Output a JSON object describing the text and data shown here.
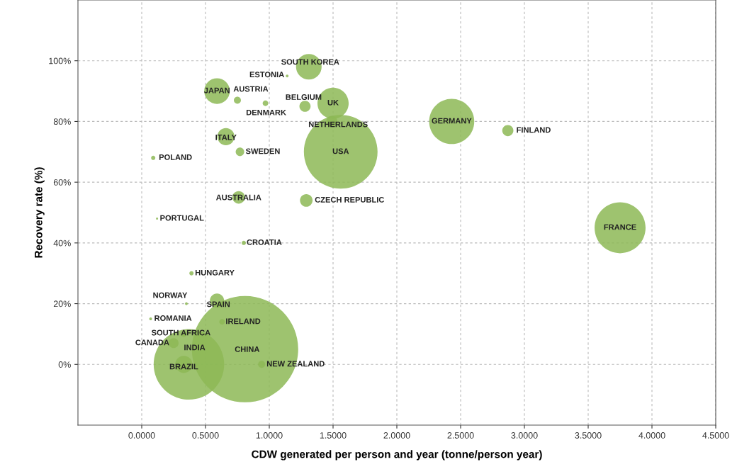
{
  "chart_data": {
    "type": "bubble",
    "xlabel": "CDW generated per person and year (tonne/person year)",
    "ylabel": "Recovery rate (%)",
    "xlim": [
      -0.5,
      4.5
    ],
    "ylim": [
      -20,
      120
    ],
    "xticks": [
      {
        "value": 0,
        "label": "0.0000"
      },
      {
        "value": 0.5,
        "label": "0.5000"
      },
      {
        "value": 1,
        "label": "1.0000"
      },
      {
        "value": 1.5,
        "label": "1.5000"
      },
      {
        "value": 2,
        "label": "2.0000"
      },
      {
        "value": 2.5,
        "label": "2.5000"
      },
      {
        "value": 3,
        "label": "3.0000"
      },
      {
        "value": 3.5,
        "label": "3.5000"
      },
      {
        "value": 4,
        "label": "4.0000"
      },
      {
        "value": 4.5,
        "label": "4.5000"
      }
    ],
    "yticks": [
      {
        "value": 0,
        "label": "0%"
      },
      {
        "value": 20,
        "label": "20%"
      },
      {
        "value": 40,
        "label": "40%"
      },
      {
        "value": 60,
        "label": "60%"
      },
      {
        "value": 80,
        "label": "80%"
      },
      {
        "value": 100,
        "label": "100%"
      }
    ],
    "grid": true,
    "marker": "circle",
    "series": [
      {
        "name": "SOUTH KOREA",
        "color": "#8db956",
        "x": [
          1.31
        ],
        "values": [
          98
        ],
        "sizes": [
          0.058
        ]
      },
      {
        "name": "ESTONIA",
        "color": "#8db956",
        "x": [
          1.14
        ],
        "values": [
          95
        ],
        "sizes": [
          0.0007
        ]
      },
      {
        "name": "JAPAN",
        "color": "#8db956",
        "x": [
          0.59
        ],
        "values": [
          90
        ],
        "sizes": [
          0.058
        ]
      },
      {
        "name": "AUSTRIA",
        "color": "#8db956",
        "x": [
          0.75
        ],
        "values": [
          87
        ],
        "sizes": [
          0.0044
        ]
      },
      {
        "name": "DENMARK",
        "color": "#8db956",
        "x": [
          0.97
        ],
        "values": [
          86
        ],
        "sizes": [
          0.0028
        ]
      },
      {
        "name": "BELGIUM",
        "color": "#8db956",
        "x": [
          1.28
        ],
        "values": [
          85
        ],
        "sizes": [
          0.011
        ]
      },
      {
        "name": "UK",
        "color": "#8db956",
        "x": [
          1.5
        ],
        "values": [
          86
        ],
        "sizes": [
          0.086
        ]
      },
      {
        "name": "NETHERLANDS",
        "color": "#8db956",
        "x": [
          1.49
        ],
        "values": [
          80
        ],
        "sizes": [
          0.011
        ]
      },
      {
        "name": "USA",
        "color": "#8db956",
        "x": [
          1.56
        ],
        "values": [
          70
        ],
        "sizes": [
          0.48
        ]
      },
      {
        "name": "ITALY",
        "color": "#8db956",
        "x": [
          0.66
        ],
        "values": [
          75
        ],
        "sizes": [
          0.026
        ]
      },
      {
        "name": "SWEDEN",
        "color": "#8db956",
        "x": [
          0.77
        ],
        "values": [
          70
        ],
        "sizes": [
          0.0064
        ]
      },
      {
        "name": "POLAND",
        "color": "#8db956",
        "x": [
          0.09
        ],
        "values": [
          68
        ],
        "sizes": [
          0.0016
        ]
      },
      {
        "name": "AUSTRALIA",
        "color": "#8db956",
        "x": [
          0.76
        ],
        "values": [
          55
        ],
        "sizes": [
          0.014
        ]
      },
      {
        "name": "CZECH REPUBLIC",
        "color": "#8db956",
        "x": [
          1.29
        ],
        "values": [
          54
        ],
        "sizes": [
          0.014
        ]
      },
      {
        "name": "PORTUGAL",
        "color": "#8db956",
        "x": [
          0.12
        ],
        "values": [
          48
        ],
        "sizes": [
          0.0004
        ]
      },
      {
        "name": "CROATIA",
        "color": "#8db956",
        "x": [
          0.8
        ],
        "values": [
          40
        ],
        "sizes": [
          0.0016
        ]
      },
      {
        "name": "GERMANY",
        "color": "#8db956",
        "x": [
          2.43
        ],
        "values": [
          80
        ],
        "sizes": [
          0.18
        ]
      },
      {
        "name": "FINLAND",
        "color": "#8db956",
        "x": [
          2.87
        ],
        "values": [
          77
        ],
        "sizes": [
          0.011
        ]
      },
      {
        "name": "FRANCE",
        "color": "#8db956",
        "x": [
          3.75
        ],
        "values": [
          45
        ],
        "sizes": [
          0.23
        ]
      },
      {
        "name": "HUNGARY",
        "color": "#8db956",
        "x": [
          0.39
        ],
        "values": [
          30
        ],
        "sizes": [
          0.0016
        ]
      },
      {
        "name": "NORWAY",
        "color": "#8db956",
        "x": [
          0.35
        ],
        "values": [
          20
        ],
        "sizes": [
          0.0007
        ]
      },
      {
        "name": "SPAIN",
        "color": "#8db956",
        "x": [
          0.59
        ],
        "values": [
          21
        ],
        "sizes": [
          0.018
        ]
      },
      {
        "name": "ROMANIA",
        "color": "#8db956",
        "x": [
          0.07
        ],
        "values": [
          15
        ],
        "sizes": [
          0.0007
        ]
      },
      {
        "name": "IRELAND",
        "color": "#8db956",
        "x": [
          0.63
        ],
        "values": [
          14
        ],
        "sizes": [
          0.0028
        ]
      },
      {
        "name": "SOUTH AFRICA",
        "color": "#8db956",
        "x": [
          0.33
        ],
        "values": [
          10
        ],
        "sizes": [
          0.0028
        ]
      },
      {
        "name": "CANADA",
        "color": "#8db956",
        "x": [
          0.25
        ],
        "values": [
          7
        ],
        "sizes": [
          0.0087
        ]
      },
      {
        "name": "INDIA",
        "color": "#8db956",
        "x": [
          0.37
        ],
        "values": [
          0
        ],
        "sizes": [
          0.44
        ]
      },
      {
        "name": "BRAZIL",
        "color": "#8db956",
        "x": [
          0.33
        ],
        "values": [
          0
        ],
        "sizes": [
          0.026
        ]
      },
      {
        "name": "CHINA",
        "color": "#8db956",
        "x": [
          0.81
        ],
        "values": [
          5
        ],
        "sizes": [
          1
        ]
      },
      {
        "name": "NEW ZEALAND",
        "color": "#8db956",
        "x": [
          0.94
        ],
        "values": [
          0
        ],
        "sizes": [
          0.0044
        ]
      }
    ]
  }
}
